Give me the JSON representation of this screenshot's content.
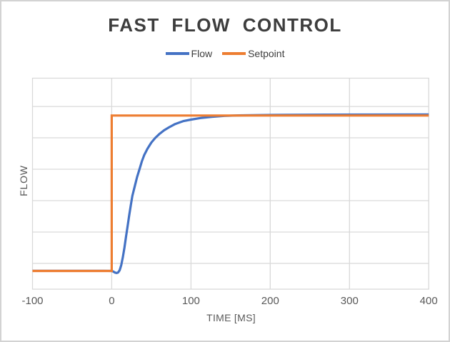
{
  "figure": {
    "background": "#ffffff",
    "border_color": "#d3d3d3"
  },
  "chart_data": {
    "type": "line",
    "title": "FAST FLOW CONTROL",
    "xlabel": "TIME [MS]",
    "ylabel": "FLOW",
    "xlim": [
      -100,
      400
    ],
    "ylim": [
      -0.82,
      5.9
    ],
    "xticks": [
      -100,
      0,
      100,
      200,
      300,
      400
    ],
    "yticks_labels_visible": false,
    "y_gridline_step": 1,
    "grid_on": true,
    "grid_color": "#d9d9d9",
    "legend_position": "top-center",
    "title_color": "#3d3d3d",
    "axis_text_color": "#595959",
    "series": [
      {
        "name": "Flow",
        "color": "#4472c4",
        "width": 3.2,
        "linejoin": "round",
        "points": [
          [
            -100,
            -0.235
          ],
          [
            -60,
            -0.235
          ],
          [
            -30,
            -0.235
          ],
          [
            -10,
            -0.235
          ],
          [
            0,
            -0.24
          ],
          [
            2,
            -0.26
          ],
          [
            4,
            -0.29
          ],
          [
            6,
            -0.305
          ],
          [
            8,
            -0.29
          ],
          [
            10,
            -0.22
          ],
          [
            12,
            -0.05
          ],
          [
            14,
            0.2
          ],
          [
            16,
            0.5
          ],
          [
            18,
            0.85
          ],
          [
            20,
            1.18
          ],
          [
            22,
            1.52
          ],
          [
            24,
            1.85
          ],
          [
            26,
            2.15
          ],
          [
            29,
            2.45
          ],
          [
            32,
            2.75
          ],
          [
            35,
            3.0
          ],
          [
            38,
            3.25
          ],
          [
            41,
            3.45
          ],
          [
            45,
            3.65
          ],
          [
            50,
            3.85
          ],
          [
            55,
            4.0
          ],
          [
            60,
            4.12
          ],
          [
            66,
            4.24
          ],
          [
            72,
            4.33
          ],
          [
            80,
            4.44
          ],
          [
            90,
            4.53
          ],
          [
            100,
            4.58
          ],
          [
            112,
            4.63
          ],
          [
            126,
            4.67
          ],
          [
            142,
            4.7
          ],
          [
            160,
            4.715
          ],
          [
            185,
            4.725
          ],
          [
            220,
            4.733
          ],
          [
            270,
            4.738
          ],
          [
            330,
            4.741
          ],
          [
            400,
            4.744
          ]
        ]
      },
      {
        "name": "Setpoint",
        "color": "#ed7d31",
        "width": 3.2,
        "linejoin": "miter",
        "points": [
          [
            -100,
            -0.24
          ],
          [
            0,
            -0.24
          ],
          [
            0,
            4.71
          ],
          [
            400,
            4.71
          ]
        ]
      }
    ]
  }
}
